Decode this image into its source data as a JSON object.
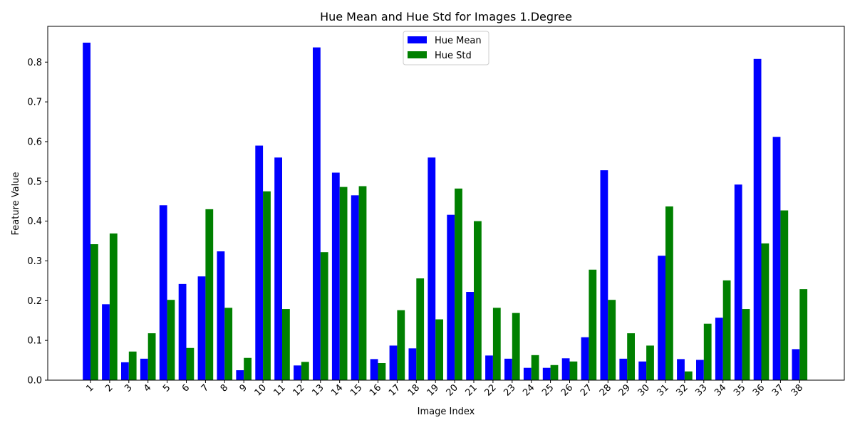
{
  "chart_data": {
    "type": "bar",
    "title": "Hue Mean and Hue Std for Images 1.Degree",
    "xlabel": "Image Index",
    "ylabel": "Feature Value",
    "ylim": [
      0,
      0.89
    ],
    "yticks": [
      "0.0",
      "0.1",
      "0.2",
      "0.3",
      "0.4",
      "0.5",
      "0.6",
      "0.7",
      "0.8"
    ],
    "grid": false,
    "legend_position": "top-center",
    "categories": [
      "1",
      "2",
      "3",
      "4",
      "5",
      "6",
      "7",
      "8",
      "9",
      "10",
      "11",
      "12",
      "13",
      "14",
      "15",
      "16",
      "17",
      "18",
      "19",
      "20",
      "21",
      "22",
      "23",
      "24",
      "25",
      "26",
      "27",
      "28",
      "29",
      "30",
      "31",
      "32",
      "33",
      "34",
      "35",
      "36",
      "37",
      "38"
    ],
    "series": [
      {
        "name": "Hue Mean",
        "color": "#0000ff",
        "values": [
          0.849,
          0.191,
          0.045,
          0.054,
          0.44,
          0.242,
          0.261,
          0.324,
          0.025,
          0.59,
          0.56,
          0.037,
          0.837,
          0.522,
          0.465,
          0.053,
          0.087,
          0.08,
          0.56,
          0.416,
          0.222,
          0.062,
          0.054,
          0.031,
          0.031,
          0.055,
          0.108,
          0.528,
          0.054,
          0.047,
          0.313,
          0.053,
          0.051,
          0.157,
          0.492,
          0.808,
          0.612,
          0.078
        ]
      },
      {
        "name": "Hue Std",
        "color": "#008000",
        "values": [
          0.342,
          0.369,
          0.072,
          0.118,
          0.202,
          0.081,
          0.43,
          0.182,
          0.056,
          0.475,
          0.179,
          0.046,
          0.322,
          0.486,
          0.488,
          0.043,
          0.176,
          0.256,
          0.153,
          0.482,
          0.4,
          0.182,
          0.169,
          0.063,
          0.038,
          0.047,
          0.278,
          0.202,
          0.118,
          0.087,
          0.437,
          0.022,
          0.142,
          0.251,
          0.179,
          0.344,
          0.427,
          0.229
        ]
      }
    ]
  }
}
